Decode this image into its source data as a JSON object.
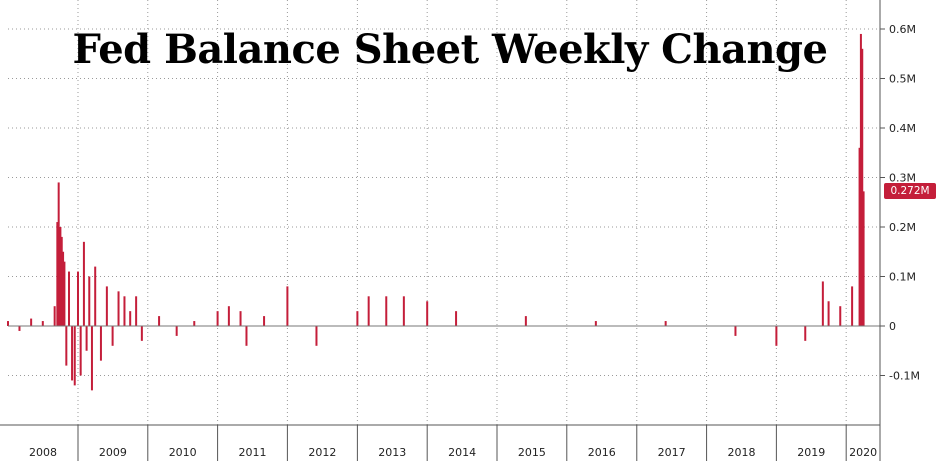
{
  "chart_data": {
    "type": "bar",
    "title": "Fed Balance Sheet Weekly Change",
    "xlabel": "",
    "ylabel": "",
    "ylim": [
      -0.2,
      0.65
    ],
    "y_unit": "M",
    "y_ticks": [
      {
        "value": 0.6,
        "label": "0.6M"
      },
      {
        "value": 0.5,
        "label": "0.5M"
      },
      {
        "value": 0.4,
        "label": "0.4M"
      },
      {
        "value": 0.3,
        "label": "0.3M"
      },
      {
        "value": 0.2,
        "label": "0.2M"
      },
      {
        "value": 0.1,
        "label": "0.1M"
      },
      {
        "value": 0,
        "label": "0"
      },
      {
        "value": -0.1,
        "label": "-0.1M"
      }
    ],
    "x_tick_labels": [
      "2008",
      "2009",
      "2010",
      "2011",
      "2012",
      "2013",
      "2014",
      "2015",
      "2016",
      "2017",
      "2018",
      "2019",
      "2020"
    ],
    "grid": true,
    "bar_color": "#c41e3a",
    "last_value_label": "0.272M",
    "last_value": 0.272,
    "series": [
      {
        "values": [
          {
            "x": "2008-01",
            "y": 0.01
          },
          {
            "x": "2008-03",
            "y": -0.01
          },
          {
            "x": "2008-05",
            "y": 0.015
          },
          {
            "x": "2008-07",
            "y": 0.01
          },
          {
            "x": "2008-09",
            "y": 0.04
          },
          {
            "x": "2008-09-15",
            "y": 0.21
          },
          {
            "x": "2008-09-22",
            "y": 0.29
          },
          {
            "x": "2008-10-01",
            "y": 0.2
          },
          {
            "x": "2008-10-08",
            "y": 0.18
          },
          {
            "x": "2008-10-15",
            "y": 0.15
          },
          {
            "x": "2008-10-22",
            "y": 0.13
          },
          {
            "x": "2008-11",
            "y": -0.08
          },
          {
            "x": "2008-11-15",
            "y": 0.11
          },
          {
            "x": "2008-12",
            "y": -0.11
          },
          {
            "x": "2008-12-15",
            "y": -0.12
          },
          {
            "x": "2009-01",
            "y": 0.11
          },
          {
            "x": "2009-01-15",
            "y": -0.1
          },
          {
            "x": "2009-02",
            "y": 0.17
          },
          {
            "x": "2009-02-15",
            "y": -0.05
          },
          {
            "x": "2009-03",
            "y": 0.1
          },
          {
            "x": "2009-03-15",
            "y": -0.13
          },
          {
            "x": "2009-04",
            "y": 0.12
          },
          {
            "x": "2009-05",
            "y": -0.07
          },
          {
            "x": "2009-06",
            "y": 0.08
          },
          {
            "x": "2009-07",
            "y": -0.04
          },
          {
            "x": "2009-08",
            "y": 0.07
          },
          {
            "x": "2009-09",
            "y": 0.06
          },
          {
            "x": "2009-10",
            "y": 0.03
          },
          {
            "x": "2009-11",
            "y": 0.06
          },
          {
            "x": "2009-12",
            "y": -0.03
          },
          {
            "x": "2010-03",
            "y": 0.02
          },
          {
            "x": "2010-06",
            "y": -0.02
          },
          {
            "x": "2010-09",
            "y": 0.01
          },
          {
            "x": "2011-01",
            "y": 0.03
          },
          {
            "x": "2011-03",
            "y": 0.04
          },
          {
            "x": "2011-05",
            "y": 0.03
          },
          {
            "x": "2011-06",
            "y": -0.04
          },
          {
            "x": "2011-09",
            "y": 0.02
          },
          {
            "x": "2012-01",
            "y": 0.08
          },
          {
            "x": "2012-06",
            "y": -0.04
          },
          {
            "x": "2013-01",
            "y": 0.03
          },
          {
            "x": "2013-03",
            "y": 0.06
          },
          {
            "x": "2013-06",
            "y": 0.06
          },
          {
            "x": "2013-09",
            "y": 0.06
          },
          {
            "x": "2014-01",
            "y": 0.05
          },
          {
            "x": "2014-06",
            "y": 0.03
          },
          {
            "x": "2015-06",
            "y": 0.02
          },
          {
            "x": "2016-06",
            "y": 0.01
          },
          {
            "x": "2017-06",
            "y": 0.01
          },
          {
            "x": "2018-06",
            "y": -0.02
          },
          {
            "x": "2019-01",
            "y": -0.04
          },
          {
            "x": "2019-06",
            "y": -0.03
          },
          {
            "x": "2019-09",
            "y": 0.09
          },
          {
            "x": "2019-10",
            "y": 0.05
          },
          {
            "x": "2019-12",
            "y": 0.04
          },
          {
            "x": "2020-02",
            "y": 0.08
          },
          {
            "x": "2020-03-11",
            "y": 0.36
          },
          {
            "x": "2020-03-18",
            "y": 0.59
          },
          {
            "x": "2020-03-25",
            "y": 0.56
          },
          {
            "x": "2020-04-01",
            "y": 0.272
          }
        ]
      }
    ]
  }
}
